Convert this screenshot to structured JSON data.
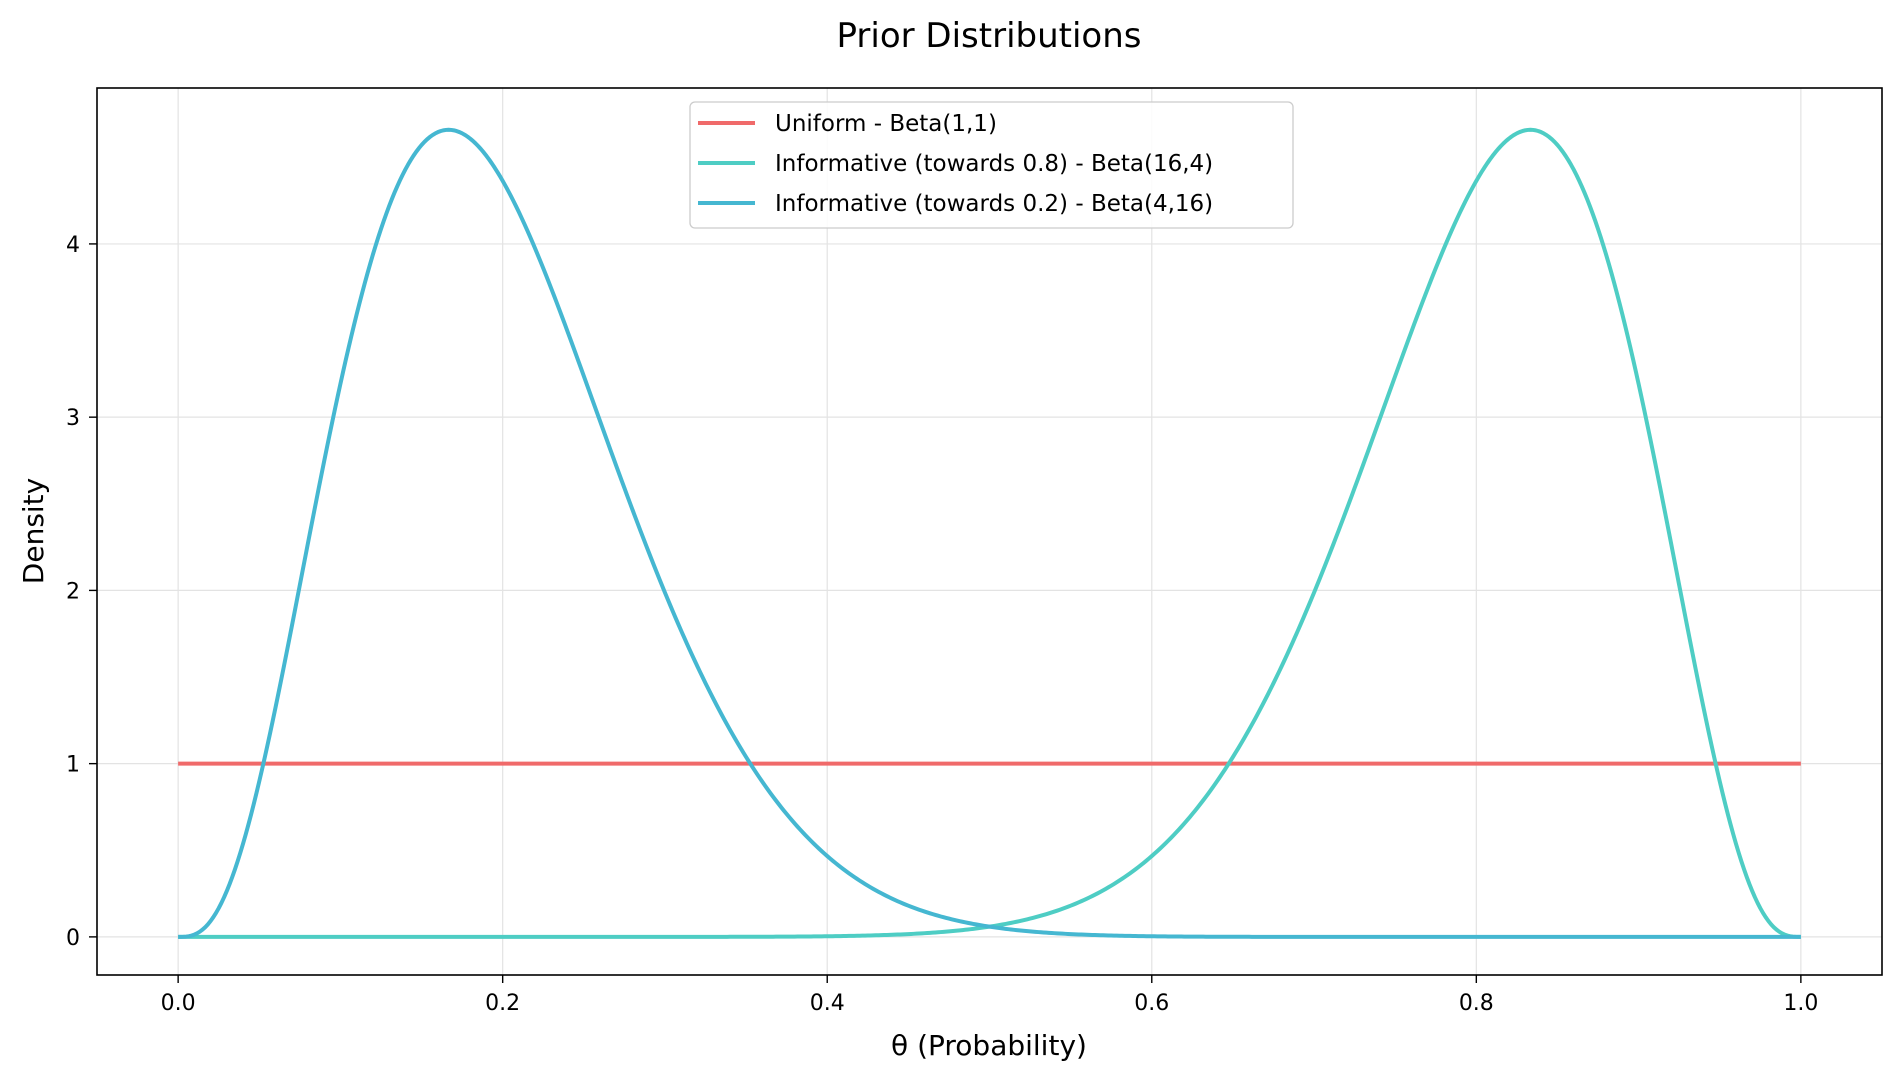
{
  "chart_data": {
    "type": "line",
    "title": "Prior Distributions",
    "xlabel": "θ (Probability)",
    "ylabel": "Density",
    "xlim": [
      -0.05,
      1.05
    ],
    "ylim": [
      -0.22,
      4.9
    ],
    "xticks": [
      0.0,
      0.2,
      0.4,
      0.6,
      0.8,
      1.0
    ],
    "xtick_labels": [
      "0.0",
      "0.2",
      "0.4",
      "0.6",
      "0.8",
      "1.0"
    ],
    "yticks": [
      0,
      1,
      2,
      3,
      4
    ],
    "ytick_labels": [
      "0",
      "1",
      "2",
      "3",
      "4"
    ],
    "grid": true,
    "legend_position": "top-center",
    "series": [
      {
        "name": "Uniform - Beta(1,1)",
        "color": "#f06a6a",
        "distribution": "beta",
        "a": 1,
        "b": 1
      },
      {
        "name": "Informative (towards 0.8) - Beta(16,4)",
        "color": "#4ecdc4",
        "distribution": "beta",
        "a": 16,
        "b": 4
      },
      {
        "name": "Informative (towards 0.2) - Beta(4,16)",
        "color": "#45b7d1",
        "distribution": "beta",
        "a": 4,
        "b": 16
      }
    ]
  }
}
